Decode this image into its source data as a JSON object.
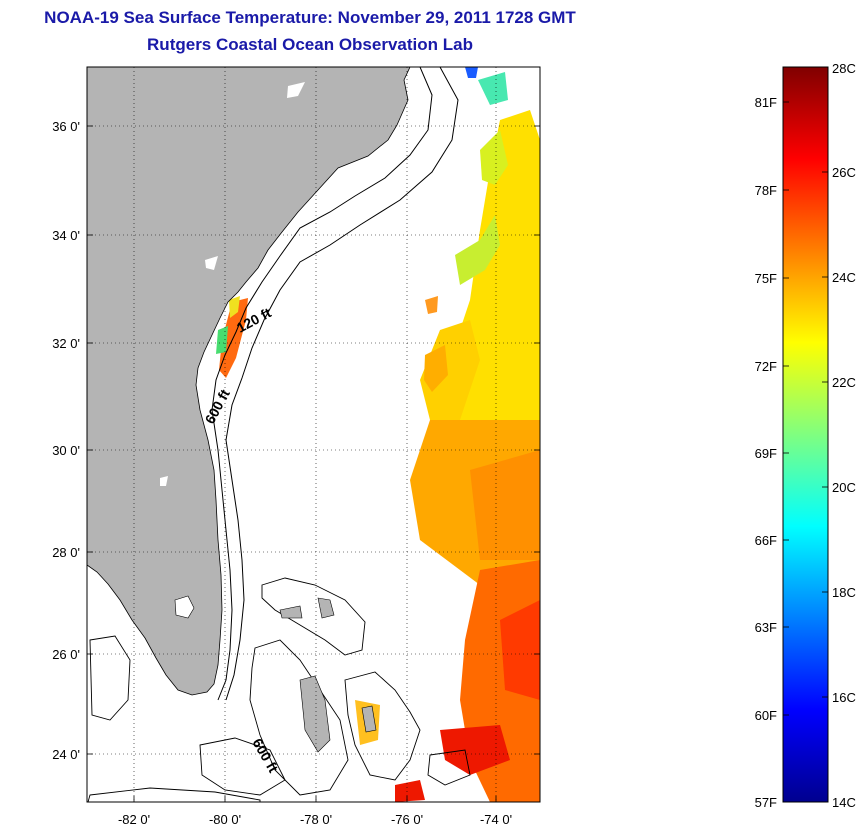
{
  "header": {
    "title": "NOAA-19 Sea Surface Temperature:  November 29, 2011 1728 GMT",
    "subtitle": "Rutgers Coastal Ocean Observation Lab"
  },
  "map": {
    "lat_ticks": [
      "36 0'",
      "34 0'",
      "32 0'",
      "30 0'",
      "28 0'",
      "26 0'",
      "24 0'"
    ],
    "lon_ticks": [
      "-82 0'",
      "-80 0'",
      "-78 0'",
      "-76 0'",
      "-74 0'"
    ],
    "isobath_labels": [
      "120 ft",
      "600 ft",
      "600 ft"
    ],
    "land_color": "#b4b4b4",
    "ocean_color": "#ffffff"
  },
  "colorbar": {
    "fahrenheit_labels": [
      "81F",
      "78F",
      "75F",
      "72F",
      "69F",
      "66F",
      "63F",
      "60F",
      "57F"
    ],
    "celsius_labels": [
      "28C",
      "26C",
      "24C",
      "22C",
      "20C",
      "18C",
      "16C",
      "14C"
    ],
    "colormap": "jet",
    "range_celsius": [
      14,
      28
    ]
  }
}
